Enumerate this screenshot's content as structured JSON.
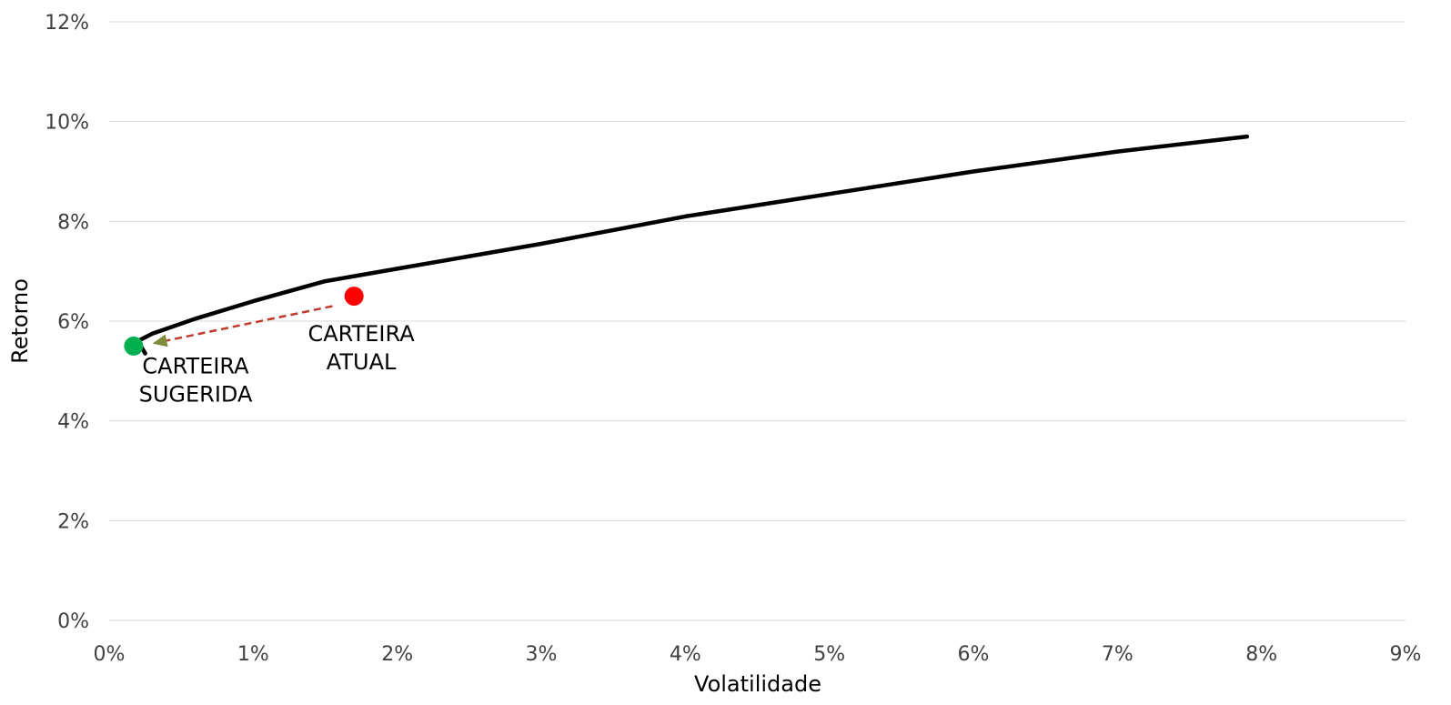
{
  "chart_data": {
    "type": "line",
    "xlabel": "Volatilidade",
    "ylabel": "Retorno",
    "xlim": [
      0,
      9
    ],
    "ylim": [
      0,
      12
    ],
    "x_ticks": [
      "0%",
      "1%",
      "2%",
      "3%",
      "4%",
      "5%",
      "6%",
      "7%",
      "8%",
      "9%"
    ],
    "y_ticks": [
      "0%",
      "2%",
      "4%",
      "6%",
      "8%",
      "10%",
      "12%"
    ],
    "grid": "horizontal",
    "series": [
      {
        "x": [
          0.25,
          0.2,
          0.3,
          0.6,
          1.0,
          1.5,
          2.0,
          3.0,
          4.0,
          5.0,
          6.0,
          7.0,
          7.9
        ],
        "y": [
          5.35,
          5.6,
          5.75,
          6.05,
          6.4,
          6.8,
          7.05,
          7.55,
          8.1,
          8.55,
          9.0,
          9.4,
          9.7
        ],
        "color": "#000000"
      }
    ],
    "points": [
      {
        "x": 1.7,
        "y": 6.5,
        "color": "#ff0000"
      },
      {
        "x": 0.17,
        "y": 5.5,
        "color": "#00b050"
      }
    ],
    "arrow": {
      "from": [
        1.55,
        6.3
      ],
      "to": [
        0.3,
        5.55
      ],
      "color": "#c0392b",
      "head_color": "#7f8c3a"
    },
    "annotations": [
      {
        "lines": [
          "CARTEIRA",
          "ATUAL"
        ],
        "x": 1.75,
        "y": 5.6
      },
      {
        "lines": [
          "CARTEIRA",
          "SUGERIDA"
        ],
        "x": 0.6,
        "y": 4.95
      }
    ]
  }
}
